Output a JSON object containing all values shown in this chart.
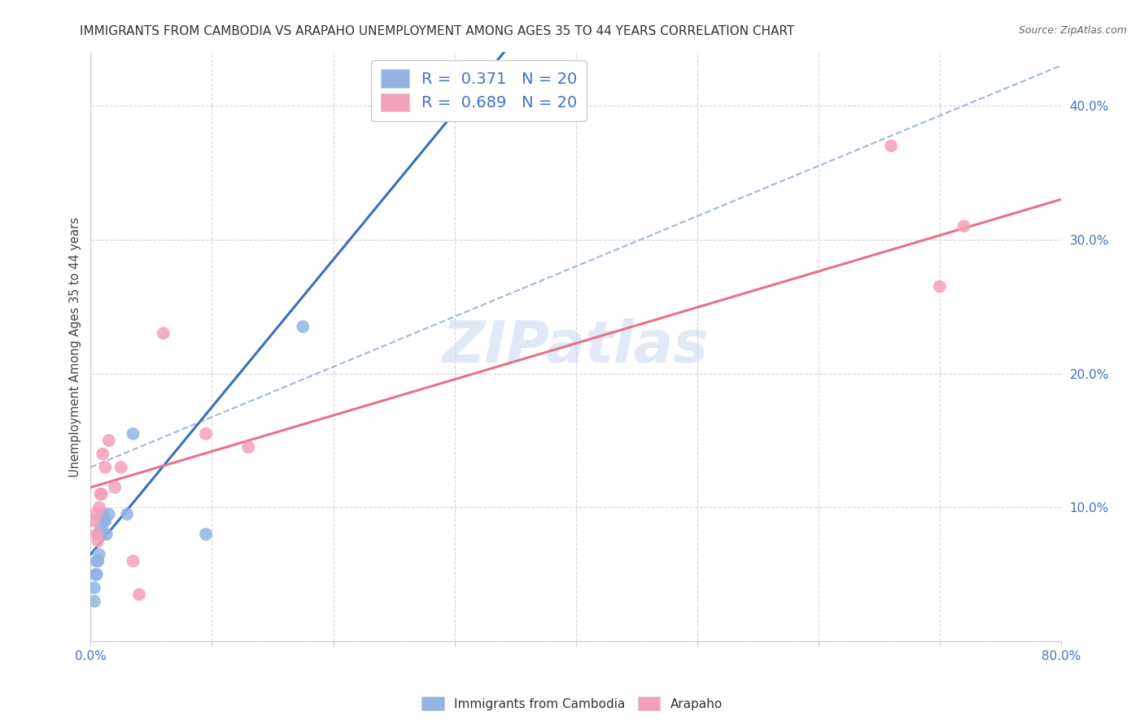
{
  "title": "IMMIGRANTS FROM CAMBODIA VS ARAPAHO UNEMPLOYMENT AMONG AGES 35 TO 44 YEARS CORRELATION CHART",
  "source": "Source: ZipAtlas.com",
  "ylabel": "Unemployment Among Ages 35 to 44 years",
  "xlim": [
    0.0,
    0.8
  ],
  "ylim": [
    0.0,
    0.44
  ],
  "xticks": [
    0.0,
    0.1,
    0.2,
    0.3,
    0.4,
    0.5,
    0.6,
    0.7,
    0.8
  ],
  "xticklabels": [
    "0.0%",
    "",
    "",
    "",
    "",
    "",
    "",
    "",
    "80.0%"
  ],
  "yticks": [
    0.0,
    0.1,
    0.2,
    0.3,
    0.4
  ],
  "yticklabels": [
    "",
    "10.0%",
    "20.0%",
    "30.0%",
    "40.0%"
  ],
  "legend_r1": "R =  0.371   N = 20",
  "legend_r2": "R =  0.689   N = 20",
  "series1_color": "#92b4e3",
  "series2_color": "#f4a0b8",
  "trendline1_color": "#3a6fbf",
  "trendline2_color": "#e8708a",
  "trendline_dashed_color": "#a0b8d8",
  "watermark": "ZIPatlas",
  "blue_x": [
    0.003,
    0.003,
    0.004,
    0.005,
    0.005,
    0.006,
    0.007,
    0.007,
    0.008,
    0.009,
    0.01,
    0.01,
    0.011,
    0.012,
    0.013,
    0.015,
    0.03,
    0.035,
    0.095,
    0.175
  ],
  "blue_y": [
    0.03,
    0.04,
    0.05,
    0.05,
    0.06,
    0.06,
    0.065,
    0.08,
    0.08,
    0.085,
    0.09,
    0.095,
    0.09,
    0.09,
    0.08,
    0.095,
    0.095,
    0.155,
    0.08,
    0.235
  ],
  "pink_x": [
    0.003,
    0.004,
    0.005,
    0.006,
    0.007,
    0.008,
    0.009,
    0.01,
    0.012,
    0.015,
    0.02,
    0.025,
    0.035,
    0.04,
    0.06,
    0.095,
    0.13,
    0.66,
    0.7,
    0.72
  ],
  "pink_y": [
    0.09,
    0.095,
    0.08,
    0.075,
    0.1,
    0.11,
    0.11,
    0.14,
    0.13,
    0.15,
    0.115,
    0.13,
    0.06,
    0.035,
    0.23,
    0.155,
    0.145,
    0.37,
    0.265,
    0.31
  ],
  "blue_trendline_x0": 0.0,
  "blue_trendline_y0": 0.065,
  "blue_trendline_x1": 0.2,
  "blue_trendline_y1": 0.285,
  "pink_trendline_x0": 0.0,
  "pink_trendline_y0": 0.115,
  "pink_trendline_x1": 0.8,
  "pink_trendline_y1": 0.33,
  "dash_trendline_x0": 0.0,
  "dash_trendline_y0": 0.13,
  "dash_trendline_x1": 0.8,
  "dash_trendline_y1": 0.43
}
